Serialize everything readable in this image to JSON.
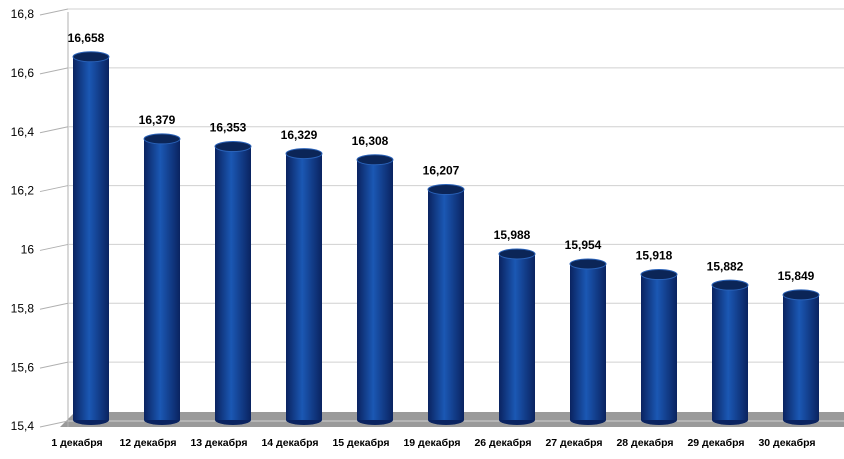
{
  "chart_data": {
    "type": "bar",
    "categories": [
      "1 декабря",
      "12 декабря",
      "13 декабря",
      "14 декабря",
      "15 декабря",
      "19 декабря",
      "26 декабря",
      "27 декабря",
      "28 декабря",
      "29 декабря",
      "30 декабря"
    ],
    "values": [
      16.658,
      16.379,
      16.353,
      16.329,
      16.308,
      16.207,
      15.988,
      15.954,
      15.918,
      15.882,
      15.849
    ],
    "value_labels": [
      "16,658",
      "16,379",
      "16,353",
      "16,329",
      "16,308",
      "16,207",
      "15,988",
      "15,954",
      "15,918",
      "15,882",
      "15,849"
    ],
    "color": "#1b58b4",
    "ylim": [
      15.4,
      16.8
    ],
    "yticks": [
      {
        "value": 15.4,
        "label": "15,4"
      },
      {
        "value": 15.6,
        "label": "15,6"
      },
      {
        "value": 15.8,
        "label": "15,8"
      },
      16,
      {
        "value": 16.2,
        "label": "16,2"
      },
      {
        "value": 16.4,
        "label": "16,4"
      },
      {
        "value": 16.6,
        "label": "16,6"
      },
      {
        "value": 16.8,
        "label": "16,8"
      }
    ],
    "grid": true
  }
}
